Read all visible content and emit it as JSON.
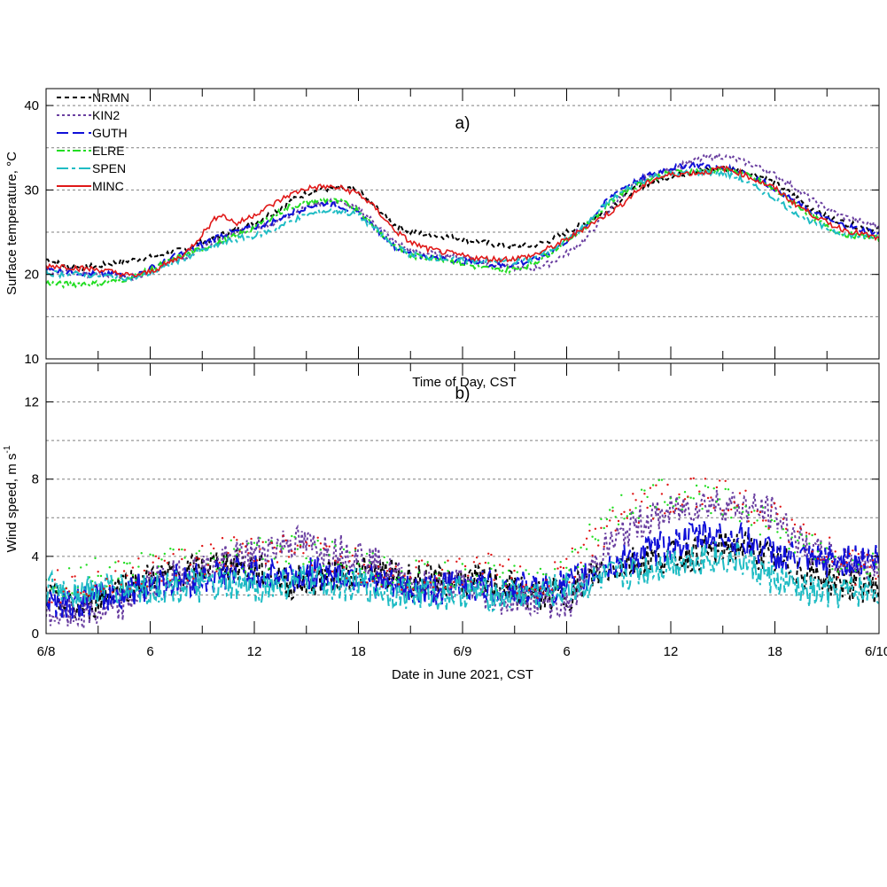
{
  "chart_data": [
    {
      "panel": "a)",
      "type": "line",
      "ylabel": "Surface temperature, °C",
      "ylim": [
        10,
        42
      ],
      "yticks": [
        10,
        20,
        30,
        40
      ],
      "ygrid": [
        15,
        20,
        25,
        30,
        35,
        40
      ],
      "x_range_hours": [
        0,
        48
      ],
      "grid": "horizontal dotted",
      "legend_position": "top-left",
      "series": [
        {
          "name": "NRMN",
          "color": "#000000",
          "style": "dash-short",
          "hours": [
            0,
            1,
            2,
            3,
            4,
            5,
            6,
            7,
            8,
            9,
            10,
            11,
            12,
            13,
            14,
            15,
            16,
            17,
            18,
            19,
            20,
            21,
            22,
            23,
            24,
            25,
            26,
            27,
            28,
            29,
            30,
            31,
            32,
            33,
            34,
            35,
            36,
            37,
            38,
            39,
            40,
            41,
            42,
            43,
            44,
            45,
            46,
            47,
            48
          ],
          "values": [
            21.8,
            21.1,
            20.8,
            21.0,
            21.4,
            21.7,
            22.0,
            22.5,
            23.0,
            23.8,
            24.6,
            25.3,
            26.2,
            27.2,
            28.6,
            29.6,
            30.1,
            30.3,
            29.8,
            28.0,
            26.0,
            25.0,
            24.7,
            24.5,
            24.2,
            23.8,
            23.5,
            23.3,
            23.4,
            24.0,
            25.0,
            26.0,
            27.2,
            28.6,
            30.2,
            31.0,
            31.6,
            32.0,
            32.4,
            32.6,
            32.4,
            31.8,
            30.8,
            29.5,
            28.0,
            26.8,
            26.1,
            25.6,
            25.3
          ]
        },
        {
          "name": "KIN2",
          "color": "#6a3fa0",
          "style": "dot",
          "hours": [
            0,
            1,
            2,
            3,
            4,
            5,
            6,
            7,
            8,
            9,
            10,
            11,
            12,
            13,
            14,
            15,
            16,
            17,
            18,
            19,
            20,
            21,
            22,
            23,
            24,
            25,
            26,
            27,
            28,
            29,
            30,
            31,
            32,
            33,
            34,
            35,
            36,
            37,
            38,
            39,
            40,
            41,
            42,
            43,
            44,
            45,
            46,
            47,
            48
          ],
          "values": [
            20.5,
            20.2,
            20.1,
            19.9,
            19.8,
            19.6,
            20.3,
            21.3,
            22.1,
            23.0,
            24.0,
            25.0,
            25.5,
            26.0,
            27.0,
            28.0,
            28.6,
            28.5,
            27.8,
            26.0,
            24.0,
            22.8,
            22.5,
            22.3,
            22.0,
            21.6,
            21.1,
            20.8,
            20.6,
            21.3,
            22.5,
            24.0,
            26.5,
            29.0,
            30.8,
            31.8,
            32.5,
            33.2,
            33.8,
            34.0,
            33.5,
            32.8,
            31.8,
            30.5,
            29.0,
            27.8,
            26.8,
            26.2,
            25.8
          ]
        },
        {
          "name": "GUTH",
          "color": "#1010d8",
          "style": "dash-long",
          "hours": [
            0,
            1,
            2,
            3,
            4,
            5,
            6,
            7,
            8,
            9,
            10,
            11,
            12,
            13,
            14,
            15,
            16,
            17,
            18,
            19,
            20,
            21,
            22,
            23,
            24,
            25,
            26,
            27,
            28,
            29,
            30,
            31,
            32,
            33,
            34,
            35,
            36,
            37,
            38,
            39,
            40,
            41,
            42,
            43,
            44,
            45,
            46,
            47,
            48
          ],
          "values": [
            20.6,
            20.4,
            20.2,
            20.0,
            20.0,
            19.7,
            20.7,
            21.8,
            22.6,
            23.6,
            24.6,
            25.1,
            25.6,
            26.2,
            27.2,
            28.0,
            28.4,
            28.1,
            27.2,
            25.5,
            23.4,
            22.5,
            22.0,
            21.9,
            21.5,
            21.4,
            21.0,
            21.2,
            21.6,
            22.6,
            24.0,
            25.6,
            28.0,
            30.0,
            31.0,
            32.0,
            32.6,
            33.0,
            32.9,
            32.5,
            32.3,
            31.4,
            30.2,
            28.9,
            27.6,
            26.5,
            25.8,
            25.3,
            24.9
          ]
        },
        {
          "name": "ELRE",
          "color": "#22dd22",
          "style": "dash-double",
          "hours": [
            0,
            1,
            2,
            3,
            4,
            5,
            6,
            7,
            8,
            9,
            10,
            11,
            12,
            13,
            14,
            15,
            16,
            17,
            18,
            19,
            20,
            21,
            22,
            23,
            24,
            25,
            26,
            27,
            28,
            29,
            30,
            31,
            32,
            33,
            34,
            35,
            36,
            37,
            38,
            39,
            40,
            41,
            42,
            43,
            44,
            45,
            46,
            47,
            48
          ],
          "values": [
            19.0,
            18.8,
            18.9,
            18.9,
            19.2,
            19.7,
            20.5,
            21.5,
            22.3,
            23.0,
            23.8,
            24.6,
            25.6,
            26.8,
            28.0,
            28.5,
            28.8,
            28.6,
            27.6,
            25.5,
            23.5,
            22.2,
            22.0,
            21.8,
            21.3,
            20.8,
            20.5,
            20.6,
            21.2,
            22.5,
            24.0,
            25.5,
            27.5,
            29.5,
            30.5,
            31.5,
            32.0,
            32.2,
            32.3,
            32.4,
            32.0,
            31.2,
            30.0,
            28.6,
            27.2,
            25.6,
            24.8,
            24.5,
            24.2
          ]
        },
        {
          "name": "SPEN",
          "color": "#1fbcc4",
          "style": "dash-long-short",
          "hours": [
            0,
            1,
            2,
            3,
            4,
            5,
            6,
            7,
            8,
            9,
            10,
            11,
            12,
            13,
            14,
            15,
            16,
            17,
            18,
            19,
            20,
            21,
            22,
            23,
            24,
            25,
            26,
            27,
            28,
            29,
            30,
            31,
            32,
            33,
            34,
            35,
            36,
            37,
            38,
            39,
            40,
            41,
            42,
            43,
            44,
            45,
            46,
            47,
            48
          ],
          "values": [
            20.2,
            20.0,
            20.0,
            19.9,
            19.7,
            19.6,
            20.1,
            21.0,
            22.0,
            22.8,
            23.6,
            24.2,
            24.6,
            25.2,
            26.2,
            27.0,
            27.5,
            27.5,
            27.0,
            25.3,
            23.4,
            22.4,
            22.0,
            21.9,
            21.6,
            21.6,
            21.5,
            21.5,
            21.8,
            22.8,
            24.2,
            25.6,
            27.8,
            29.5,
            30.8,
            31.6,
            31.9,
            32.0,
            32.1,
            32.0,
            31.3,
            30.2,
            29.0,
            27.6,
            26.4,
            25.4,
            24.8,
            24.5,
            24.2
          ]
        },
        {
          "name": "MINC",
          "color": "#e01818",
          "style": "solid",
          "hours": [
            0,
            1,
            2,
            3,
            4,
            5,
            6,
            7,
            8,
            9,
            10,
            11,
            12,
            13,
            14,
            15,
            16,
            17,
            18,
            19,
            20,
            21,
            22,
            23,
            24,
            25,
            26,
            27,
            28,
            29,
            30,
            31,
            32,
            33,
            34,
            35,
            36,
            37,
            38,
            39,
            40,
            41,
            42,
            43,
            44,
            45,
            46,
            47,
            48
          ],
          "values": [
            21.0,
            21.0,
            20.7,
            20.6,
            20.2,
            19.8,
            20.3,
            21.3,
            22.4,
            24.8,
            27.2,
            26.0,
            27.1,
            28.2,
            29.4,
            30.2,
            30.4,
            30.2,
            29.6,
            27.8,
            25.4,
            23.8,
            23.0,
            22.6,
            22.2,
            21.9,
            21.8,
            21.9,
            22.2,
            23.1,
            24.1,
            25.5,
            26.7,
            28.0,
            29.8,
            31.3,
            31.8,
            32.0,
            32.1,
            32.6,
            32.0,
            31.1,
            30.2,
            28.6,
            27.3,
            26.1,
            25.3,
            24.8,
            24.2
          ]
        }
      ]
    },
    {
      "panel": "b)",
      "type": "line",
      "title": "Time of Day, CST",
      "ylabel_main": "Wind speed, m s",
      "ylabel_sup": "-1",
      "ylim": [
        0,
        14
      ],
      "yticks": [
        0,
        4,
        8,
        12
      ],
      "ygrid": [
        2,
        4,
        6,
        8,
        10,
        12
      ],
      "xlabel": "Date in June 2021, CST",
      "xtick_labels": [
        "6/8",
        "6",
        "12",
        "18",
        "6/9",
        "6",
        "12",
        "18",
        "6/10"
      ],
      "xticks_hours": [
        0,
        6,
        12,
        18,
        24,
        30,
        36,
        42,
        48
      ],
      "grid": "horizontal dotted",
      "series": [
        {
          "name": "NRMN",
          "color": "#000000",
          "style": "dash-short",
          "hours": [
            0,
            2,
            4,
            6,
            8,
            10,
            12,
            14,
            16,
            18,
            20,
            22,
            24,
            26,
            28,
            30,
            32,
            34,
            36,
            38,
            40,
            42,
            44,
            46,
            48
          ],
          "values": [
            1.8,
            1.2,
            2.4,
            2.8,
            3.1,
            3.6,
            3.4,
            2.6,
            2.9,
            3.2,
            3.0,
            2.7,
            2.7,
            2.6,
            2.0,
            2.0,
            3.3,
            3.8,
            4.0,
            4.2,
            4.6,
            3.8,
            3.1,
            2.6,
            2.4
          ]
        },
        {
          "name": "KIN2",
          "color": "#6a3fa0",
          "style": "dot",
          "hours": [
            0,
            2,
            4,
            6,
            8,
            10,
            12,
            14,
            16,
            18,
            20,
            22,
            24,
            26,
            28,
            30,
            32,
            34,
            36,
            38,
            40,
            42,
            44,
            46,
            48
          ],
          "values": [
            1.0,
            1.0,
            1.2,
            2.6,
            3.1,
            3.6,
            4.2,
            4.8,
            4.4,
            4.2,
            3.0,
            2.4,
            2.6,
            1.8,
            1.9,
            1.4,
            4.2,
            5.7,
            6.3,
            6.8,
            6.6,
            6.2,
            4.2,
            3.7,
            3.5
          ]
        },
        {
          "name": "GUTH",
          "color": "#1010d8",
          "style": "dash-long",
          "hours": [
            0,
            2,
            4,
            6,
            8,
            10,
            12,
            14,
            16,
            18,
            20,
            22,
            24,
            26,
            28,
            30,
            32,
            34,
            36,
            38,
            40,
            42,
            44,
            46,
            48
          ],
          "values": [
            1.8,
            1.6,
            2.0,
            2.6,
            2.8,
            3.0,
            3.2,
            3.0,
            3.1,
            3.0,
            2.4,
            2.2,
            2.6,
            2.3,
            2.3,
            2.5,
            3.3,
            4.0,
            4.6,
            5.1,
            4.9,
            4.1,
            3.7,
            3.8,
            3.9
          ]
        },
        {
          "name": "ELRE",
          "color": "#22dd22",
          "style": "dots-only",
          "hours": [
            0,
            2,
            4,
            6,
            8,
            10,
            12,
            14,
            16,
            18,
            20,
            22,
            24,
            26,
            28,
            30,
            32,
            34,
            36,
            38,
            40,
            42,
            44,
            46,
            48
          ],
          "values": [
            2.5,
            2.9,
            3.2,
            3.3,
            3.7,
            4.0,
            4.0,
            4.3,
            4.0,
            3.6,
            3.0,
            2.9,
            3.1,
            2.9,
            2.6,
            3.0,
            5.7,
            6.7,
            7.3,
            7.1,
            6.5,
            5.6,
            4.4,
            3.5,
            3.2
          ]
        },
        {
          "name": "SPEN",
          "color": "#1fbcc4",
          "style": "dash-long-short",
          "hours": [
            0,
            2,
            4,
            6,
            8,
            10,
            12,
            14,
            16,
            18,
            20,
            22,
            24,
            26,
            28,
            30,
            32,
            34,
            36,
            38,
            40,
            42,
            44,
            46,
            48
          ],
          "values": [
            2.3,
            2.2,
            2.3,
            2.3,
            2.5,
            2.4,
            2.4,
            2.6,
            2.7,
            2.5,
            2.2,
            2.0,
            2.2,
            2.0,
            2.0,
            2.3,
            2.8,
            3.2,
            3.7,
            4.0,
            3.8,
            2.8,
            2.1,
            2.1,
            2.3
          ]
        },
        {
          "name": "MINC",
          "color": "#e01818",
          "style": "dots-only",
          "hours": [
            0,
            2,
            4,
            6,
            8,
            10,
            12,
            14,
            16,
            18,
            20,
            22,
            24,
            26,
            28,
            30,
            32,
            34,
            36,
            38,
            40,
            42,
            44,
            46,
            48
          ],
          "values": [
            2.3,
            2.8,
            3.0,
            3.2,
            3.6,
            4.0,
            4.6,
            4.2,
            4.1,
            3.5,
            3.0,
            3.2,
            3.1,
            3.4,
            2.6,
            3.4,
            5.0,
            6.5,
            7.2,
            7.3,
            6.8,
            6.0,
            4.8,
            3.6,
            3.0
          ]
        }
      ]
    }
  ]
}
